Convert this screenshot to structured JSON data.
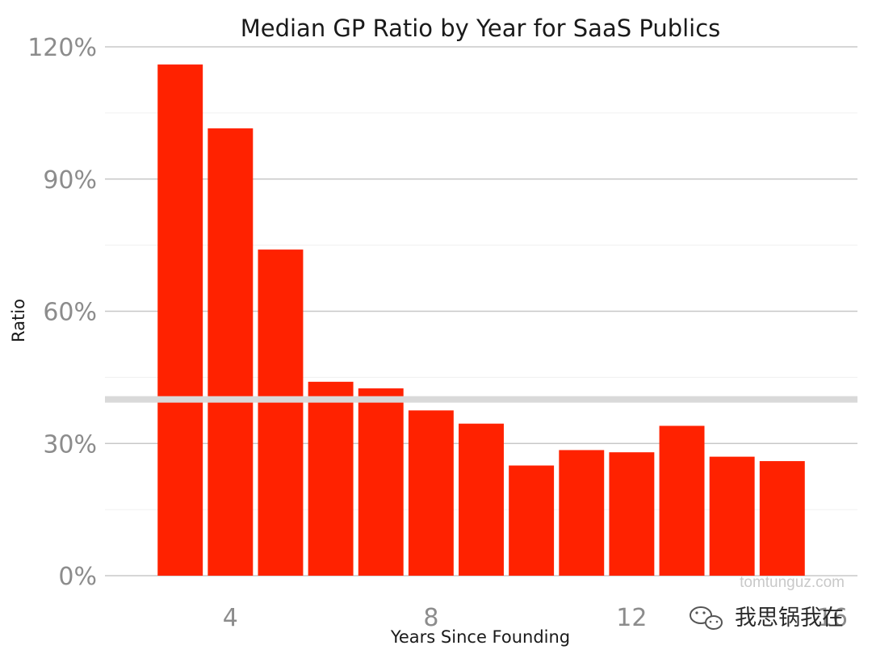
{
  "chart_data": {
    "type": "bar",
    "title": "Median GP Ratio by Year for SaaS Publics",
    "xlabel": "Years Since Founding",
    "ylabel": "Ratio",
    "x": [
      3,
      4,
      5,
      6,
      7,
      8,
      9,
      10,
      11,
      12,
      13,
      14,
      15
    ],
    "values": [
      116,
      101.5,
      74,
      44,
      42.5,
      37.5,
      34.5,
      25,
      28.5,
      28,
      34,
      27,
      26
    ],
    "xlim": [
      1.5,
      16.5
    ],
    "ylim": [
      0,
      120
    ],
    "xticks": [
      4,
      8,
      12,
      16
    ],
    "xtick_labels": [
      "4",
      "8",
      "12",
      "16"
    ],
    "yticks": [
      0,
      30,
      60,
      90,
      120
    ],
    "ytick_labels": [
      "0%",
      "30%",
      "60%",
      "90%",
      "120%"
    ],
    "reference_line": 40,
    "grid": true,
    "colors": {
      "bar": "#ff2200",
      "reference_line": "#d9d9d9",
      "grid_major": "#c8c8c8",
      "grid_minor": "#f0f0f0"
    }
  },
  "watermark": "tomtunguz.com",
  "wechat_caption": "我思锅我在"
}
